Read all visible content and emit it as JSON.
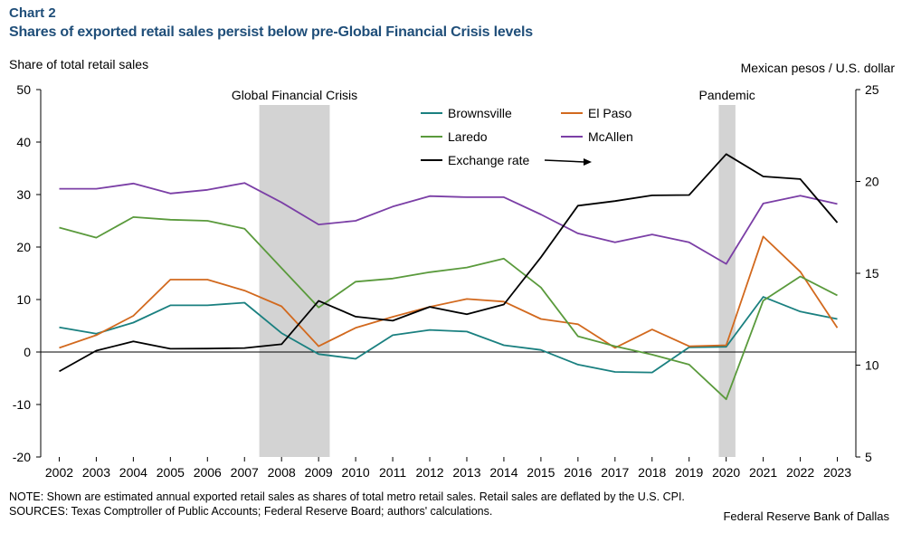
{
  "header": {
    "chart_number": "Chart 2",
    "title": "Shares of exported retail sales persist below pre-Global Financial Crisis levels"
  },
  "axes": {
    "left_label": "Share of total retail sales",
    "right_label": "Mexican pesos / U.S. dollar"
  },
  "footer": {
    "note": "NOTE: Shown are estimated annual exported retail sales as shares of total metro retail sales. Retail sales are deflated by the U.S. CPI.",
    "sources": "SOURCES: Texas Comptroller of Public Accounts; Federal Reserve Board; authors' calculations.",
    "credit": "Federal Reserve Bank of Dallas"
  },
  "chart_data": {
    "type": "line",
    "categories": [
      "2002",
      "2003",
      "2004",
      "2005",
      "2006",
      "2007",
      "2008",
      "2009",
      "2010",
      "2011",
      "2012",
      "2013",
      "2014",
      "2015",
      "2016",
      "2017",
      "2018",
      "2019",
      "2020",
      "2021",
      "2022",
      "2023"
    ],
    "y_left": {
      "min": -20,
      "max": 50,
      "ticks": [
        50,
        40,
        30,
        20,
        10,
        0,
        -10,
        -20
      ]
    },
    "y_right": {
      "min": 5,
      "max": 25,
      "ticks": [
        25,
        20,
        15,
        10,
        5
      ]
    },
    "shaded_periods": [
      {
        "label": "Global Financial Crisis",
        "start": 2007.4,
        "end": 2009.3
      },
      {
        "label": "Pandemic",
        "start": 2019.8,
        "end": 2020.25
      }
    ],
    "series": [
      {
        "name": "Brownsville",
        "color": "#1a8080",
        "axis": "left",
        "values": [
          4.7,
          3.5,
          5.6,
          8.9,
          8.9,
          9.4,
          3.6,
          -0.4,
          -1.3,
          3.2,
          4.2,
          3.9,
          1.3,
          0.4,
          -2.4,
          -3.8,
          -3.9,
          0.9,
          1.0,
          10.5,
          7.7,
          6.3
        ]
      },
      {
        "name": "El Paso",
        "color": "#d2691e",
        "axis": "left",
        "values": [
          0.8,
          3.2,
          6.9,
          13.8,
          13.8,
          11.7,
          8.7,
          1.1,
          4.6,
          6.7,
          8.6,
          10.1,
          9.6,
          6.3,
          5.3,
          0.8,
          4.3,
          1.1,
          1.3,
          22.0,
          15.3,
          4.6
        ]
      },
      {
        "name": "Laredo",
        "color": "#5a9a3c",
        "axis": "left",
        "values": [
          23.7,
          21.8,
          25.7,
          25.2,
          25.0,
          23.5,
          16.0,
          8.5,
          13.4,
          14.0,
          15.2,
          16.1,
          17.8,
          12.3,
          3.0,
          1.1,
          -0.5,
          -2.4,
          -9.0,
          9.8,
          14.4,
          10.8
        ]
      },
      {
        "name": "McAllen",
        "color": "#7b3fa6",
        "axis": "left",
        "values": [
          31.1,
          31.1,
          32.1,
          30.2,
          30.9,
          32.2,
          28.5,
          24.3,
          25.0,
          27.7,
          29.7,
          29.5,
          29.5,
          26.2,
          22.6,
          20.9,
          22.4,
          20.9,
          16.8,
          28.3,
          29.8,
          28.2
        ]
      },
      {
        "name": "Exchange rate",
        "color": "#000000",
        "axis": "right",
        "values": [
          9.66,
          10.79,
          11.29,
          10.89,
          10.9,
          10.93,
          11.14,
          13.5,
          12.64,
          12.42,
          13.17,
          12.77,
          13.3,
          15.87,
          18.68,
          18.93,
          19.24,
          19.26,
          21.49,
          20.27,
          20.13,
          17.76
        ]
      }
    ]
  }
}
